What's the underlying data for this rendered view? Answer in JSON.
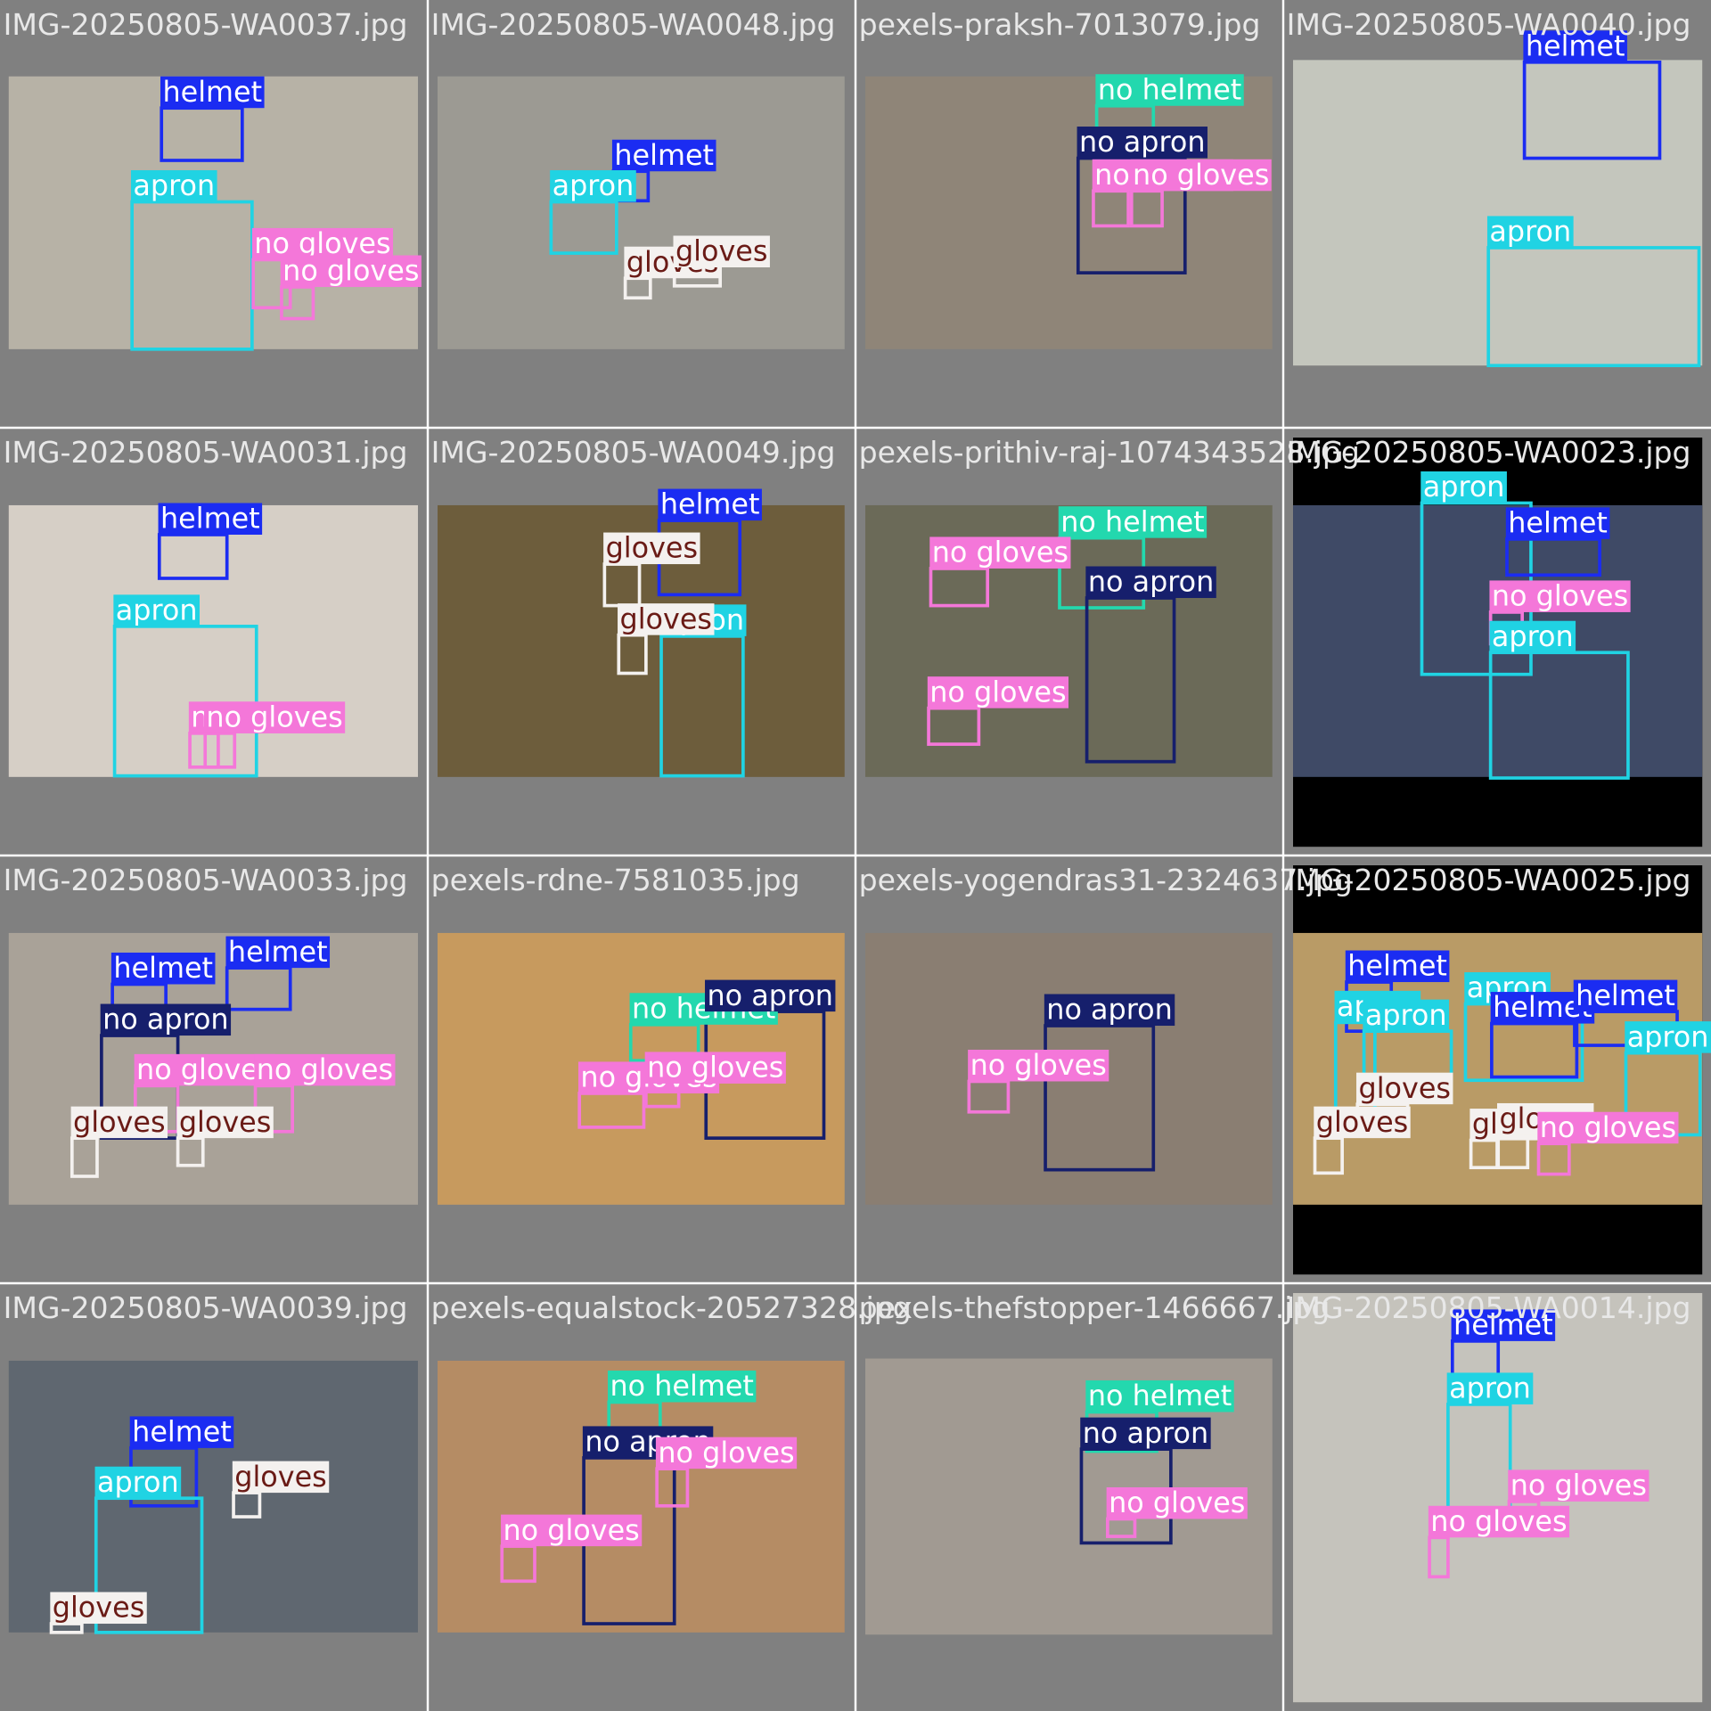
{
  "palette": {
    "helmet": {
      "box": "#1b2cf2",
      "text": "#ffffff"
    },
    "apron": {
      "box": "#20d3e3",
      "text": "#ffffff"
    },
    "no gloves": {
      "box": "#f477d9",
      "text": "#ffffff"
    },
    "gloves": {
      "box": "#f4f1ef",
      "text": "#6a1b16"
    },
    "no helmet": {
      "box": "#23d8ae",
      "text": "#ffffff"
    },
    "no apron": {
      "box": "#161f6c",
      "text": "#ffffff"
    }
  },
  "tiles": [
    {
      "file": "IMG-20250805-WA0037.jpg",
      "boxes": [
        {
          "label": "helmet"
        },
        {
          "label": "apron"
        },
        {
          "label": "no gloves"
        },
        {
          "label": "no gloves"
        }
      ]
    },
    {
      "file": "IMG-20250805-WA0048.jpg",
      "boxes": [
        {
          "label": "helmet"
        },
        {
          "label": "apron"
        },
        {
          "label": "gloves"
        },
        {
          "label": "gloves"
        }
      ]
    },
    {
      "file": "pexels-praksh-7013079.jpg",
      "boxes": [
        {
          "label": "no helmet"
        },
        {
          "label": "no apron"
        },
        {
          "label": "no gloves"
        },
        {
          "label": "no gloves"
        }
      ]
    },
    {
      "file": "IMG-20250805-WA0040.jpg",
      "boxes": [
        {
          "label": "helmet"
        },
        {
          "label": "apron"
        }
      ]
    },
    {
      "file": "IMG-20250805-WA0031.jpg",
      "boxes": [
        {
          "label": "helmet"
        },
        {
          "label": "apron"
        },
        {
          "label": "no gloves"
        },
        {
          "label": "no gloves"
        }
      ]
    },
    {
      "file": "IMG-20250805-WA0049.jpg",
      "boxes": [
        {
          "label": "helmet"
        },
        {
          "label": "gloves"
        },
        {
          "label": "apron"
        },
        {
          "label": "gloves"
        }
      ]
    },
    {
      "file": "pexels-prithiv-raj-1074343528.jpg",
      "boxes": [
        {
          "label": "no helmet"
        },
        {
          "label": "no gloves"
        },
        {
          "label": "no apron"
        },
        {
          "label": "no gloves"
        }
      ]
    },
    {
      "file": "IMG-20250805-WA0023.jpg",
      "boxes": [
        {
          "label": "apron"
        },
        {
          "label": "helmet"
        },
        {
          "label": "no gloves"
        },
        {
          "label": "apron"
        }
      ]
    },
    {
      "file": "IMG-20250805-WA0033.jpg",
      "boxes": [
        {
          "label": "helmet"
        },
        {
          "label": "helmet"
        },
        {
          "label": "no apron"
        },
        {
          "label": "no gloves"
        },
        {
          "label": "no gloves"
        },
        {
          "label": "gloves"
        },
        {
          "label": "gloves"
        }
      ]
    },
    {
      "file": "pexels-rdne-7581035.jpg",
      "boxes": [
        {
          "label": "no helmet"
        },
        {
          "label": "no apron"
        },
        {
          "label": "no gloves"
        },
        {
          "label": "no gloves"
        }
      ]
    },
    {
      "file": "pexels-yogendras31-2324637.jpg",
      "boxes": [
        {
          "label": "no apron"
        },
        {
          "label": "no gloves"
        }
      ]
    },
    {
      "file": "IMG-20250805-WA0025.jpg",
      "boxes": [
        {
          "label": "helmet"
        },
        {
          "label": "apron"
        },
        {
          "label": "apron"
        },
        {
          "label": "apron"
        },
        {
          "label": "helmet"
        },
        {
          "label": "helmet"
        },
        {
          "label": "apron"
        },
        {
          "label": "gloves"
        },
        {
          "label": "gloves"
        },
        {
          "label": "gloves"
        },
        {
          "label": "gloves"
        },
        {
          "label": "no gloves"
        }
      ]
    },
    {
      "file": "IMG-20250805-WA0039.jpg",
      "boxes": [
        {
          "label": "helmet"
        },
        {
          "label": "apron"
        },
        {
          "label": "gloves"
        },
        {
          "label": "gloves"
        }
      ]
    },
    {
      "file": "pexels-equalstock-20527328.jpg",
      "boxes": [
        {
          "label": "no helmet"
        },
        {
          "label": "no apron"
        },
        {
          "label": "no gloves"
        },
        {
          "label": "no gloves"
        }
      ]
    },
    {
      "file": "pexels-thefstopper-1466667.jpg",
      "boxes": [
        {
          "label": "no helmet"
        },
        {
          "label": "no apron"
        },
        {
          "label": "no gloves"
        }
      ]
    },
    {
      "file": "IMG-20250805-WA0014.jpg",
      "boxes": [
        {
          "label": "helmet"
        },
        {
          "label": "apron"
        },
        {
          "label": "no gloves"
        },
        {
          "label": "no gloves"
        }
      ]
    }
  ]
}
